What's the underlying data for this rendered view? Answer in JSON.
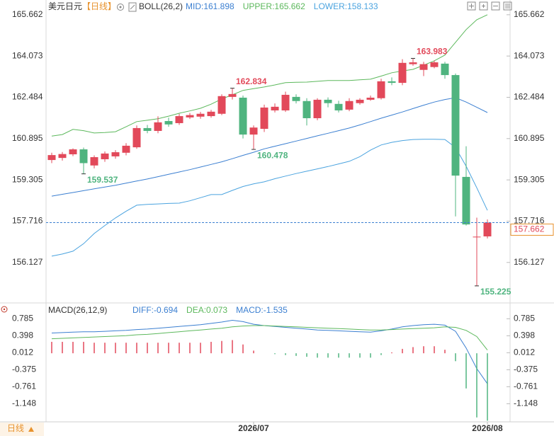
{
  "chart_data": [
    {
      "type": "candlestick",
      "title": "美元日元",
      "subtitle": "【日线】",
      "indicator": "BOLL(26,2)",
      "period": "日线",
      "categories": [
        null,
        null,
        null,
        null,
        null,
        null,
        null,
        null,
        null,
        null,
        null,
        null,
        null,
        null,
        null,
        null,
        null,
        null,
        null,
        "2026/07",
        null,
        null,
        null,
        null,
        null,
        null,
        null,
        null,
        null,
        null,
        null,
        null,
        null,
        null,
        null,
        null,
        null,
        null,
        null,
        null,
        null,
        "2026/08"
      ],
      "candles": {
        "up_color": "#e2495a",
        "down_color": "#4fb47f",
        "open": [
          160.07,
          160.15,
          160.29,
          160.48,
          159.86,
          160.1,
          160.21,
          160.35,
          160.56,
          161.3,
          161.19,
          161.57,
          161.49,
          161.71,
          161.74,
          161.76,
          161.85,
          162.5,
          162.47,
          161.05,
          161.27,
          161.98,
          161.98,
          162.5,
          162.34,
          161.68,
          162.39,
          162.23,
          162.01,
          162.26,
          162.39,
          162.45,
          163.1,
          163.04,
          163.76,
          163.54,
          163.65,
          163.78,
          163.34,
          159.42,
          157.1,
          157.13
        ],
        "high": [
          160.35,
          160.38,
          160.52,
          160.55,
          160.25,
          160.4,
          160.45,
          160.72,
          161.4,
          161.42,
          161.75,
          161.7,
          161.85,
          161.88,
          161.92,
          162.0,
          162.6,
          162.834,
          162.55,
          161.4,
          162.2,
          162.25,
          162.7,
          162.6,
          162.45,
          162.45,
          162.48,
          162.35,
          162.45,
          162.45,
          162.55,
          163.2,
          163.25,
          163.95,
          163.983,
          163.85,
          163.9,
          163.85,
          163.4,
          160.6,
          157.85,
          157.78
        ],
        "low": [
          159.95,
          160.05,
          160.22,
          159.537,
          159.75,
          160.0,
          160.12,
          160.25,
          160.5,
          161.1,
          161.1,
          161.35,
          161.42,
          161.65,
          161.66,
          161.7,
          161.8,
          162.4,
          160.9,
          160.478,
          161.15,
          161.9,
          161.92,
          162.25,
          161.4,
          161.6,
          162.1,
          161.9,
          161.95,
          162.2,
          162.35,
          162.4,
          162.95,
          162.95,
          163.7,
          163.3,
          163.6,
          163.2,
          157.9,
          157.55,
          155.225,
          157.05
        ],
        "close": [
          160.26,
          160.3,
          160.48,
          159.95,
          160.18,
          160.32,
          160.37,
          160.62,
          161.3,
          161.19,
          161.52,
          161.44,
          161.76,
          161.8,
          161.85,
          161.93,
          162.53,
          162.61,
          161.05,
          161.32,
          162.09,
          162.12,
          162.58,
          162.34,
          161.68,
          162.39,
          162.26,
          161.98,
          162.34,
          162.39,
          162.47,
          163.1,
          163.04,
          163.81,
          163.83,
          163.76,
          163.83,
          163.34,
          159.47,
          157.59,
          157.12,
          157.662
        ]
      },
      "extreme_labels": [
        {
          "index": 3,
          "field": "low"
        },
        {
          "index": 17,
          "field": "high"
        },
        {
          "index": 19,
          "field": "low"
        },
        {
          "index": 34,
          "field": "high"
        },
        {
          "index": 40,
          "field": "low"
        }
      ],
      "series": [
        {
          "name": "MID:161.898",
          "color": "#3b7fd1",
          "values": [
            158.68,
            158.75,
            158.82,
            158.89,
            158.96,
            159.03,
            159.1,
            159.18,
            159.26,
            159.34,
            159.43,
            159.52,
            159.61,
            159.7,
            159.8,
            159.9,
            160.0,
            160.12,
            160.25,
            160.37,
            160.5,
            160.6,
            160.7,
            160.8,
            160.9,
            161.0,
            161.1,
            161.2,
            161.3,
            161.42,
            161.55,
            161.68,
            161.8,
            161.92,
            162.05,
            162.18,
            162.3,
            162.4,
            162.47,
            162.3,
            162.1,
            161.898
          ]
        },
        {
          "name": "UPPER:165.662",
          "color": "#5cb85c",
          "values": [
            160.99,
            161.05,
            161.25,
            161.2,
            161.11,
            161.13,
            161.16,
            161.35,
            161.55,
            161.6,
            161.66,
            161.76,
            161.87,
            161.96,
            162.06,
            162.22,
            162.42,
            162.58,
            162.75,
            162.82,
            162.88,
            162.96,
            163.05,
            163.06,
            163.07,
            163.1,
            163.13,
            163.13,
            163.13,
            163.16,
            163.18,
            163.3,
            163.43,
            163.5,
            163.56,
            163.72,
            163.89,
            164.11,
            164.6,
            165.09,
            165.47,
            165.662
          ]
        },
        {
          "name": "LOWER:158.133",
          "color": "#4aa3df",
          "values": [
            156.37,
            156.45,
            156.56,
            156.85,
            157.24,
            157.55,
            157.84,
            158.1,
            158.33,
            158.36,
            158.38,
            158.4,
            158.41,
            158.5,
            158.62,
            158.74,
            158.74,
            158.9,
            159.05,
            159.15,
            159.23,
            159.35,
            159.45,
            159.55,
            159.64,
            159.73,
            159.82,
            159.92,
            160.02,
            160.2,
            160.45,
            160.65,
            160.75,
            160.82,
            160.86,
            160.87,
            160.87,
            160.86,
            160.55,
            159.83,
            159.0,
            158.133
          ]
        }
      ],
      "ylim": [
        154.65,
        166.23
      ],
      "yticks": [
        165.662,
        164.073,
        162.484,
        160.895,
        159.305,
        157.716,
        156.127
      ],
      "grid": false,
      "last_price_line": true,
      "last_price_color": "#3b7fd1"
    },
    {
      "type": "macd",
      "title": "MACD(26,12,9)",
      "series": [
        {
          "name": "DIFF:-0.694",
          "type": "line",
          "color": "#3b7fd1",
          "values": [
            0.46,
            0.47,
            0.48,
            0.49,
            0.49,
            0.5,
            0.51,
            0.52,
            0.54,
            0.55,
            0.57,
            0.59,
            0.61,
            0.63,
            0.65,
            0.68,
            0.71,
            0.75,
            0.72,
            0.66,
            0.63,
            0.61,
            0.59,
            0.57,
            0.55,
            0.53,
            0.52,
            0.51,
            0.5,
            0.49,
            0.48,
            0.51,
            0.55,
            0.6,
            0.63,
            0.65,
            0.66,
            0.64,
            0.5,
            0.12,
            -0.35,
            -0.694
          ]
        },
        {
          "name": "DEA:0.073",
          "type": "line",
          "color": "#5cb85c",
          "values": [
            0.33,
            0.34,
            0.35,
            0.36,
            0.37,
            0.38,
            0.39,
            0.4,
            0.42,
            0.43,
            0.45,
            0.47,
            0.49,
            0.51,
            0.53,
            0.55,
            0.57,
            0.6,
            0.62,
            0.63,
            0.63,
            0.62,
            0.61,
            0.6,
            0.59,
            0.58,
            0.57,
            0.56,
            0.55,
            0.54,
            0.53,
            0.53,
            0.54,
            0.55,
            0.56,
            0.57,
            0.58,
            0.6,
            0.59,
            0.52,
            0.38,
            0.073
          ]
        },
        {
          "name": "MACD:-1.535",
          "type": "bar",
          "color": "#3b7fd1",
          "up_color": "#e2495a",
          "down_color": "#4fb47f",
          "values": [
            0.26,
            0.26,
            0.26,
            0.26,
            0.24,
            0.24,
            0.24,
            0.24,
            0.24,
            0.24,
            0.24,
            0.24,
            0.24,
            0.24,
            0.24,
            0.26,
            0.28,
            0.3,
            0.2,
            0.06,
            0.0,
            -0.02,
            -0.04,
            -0.06,
            -0.08,
            -0.1,
            -0.1,
            -0.1,
            -0.1,
            -0.1,
            -0.1,
            -0.04,
            0.02,
            0.1,
            0.14,
            0.16,
            0.16,
            0.08,
            -0.18,
            -0.8,
            -1.46,
            -1.535
          ]
        }
      ],
      "ylim": [
        -1.56,
        1.0
      ],
      "yticks": [
        0.785,
        0.398,
        0.012,
        -0.375,
        -0.761,
        -1.148
      ],
      "grid": false
    }
  ]
}
